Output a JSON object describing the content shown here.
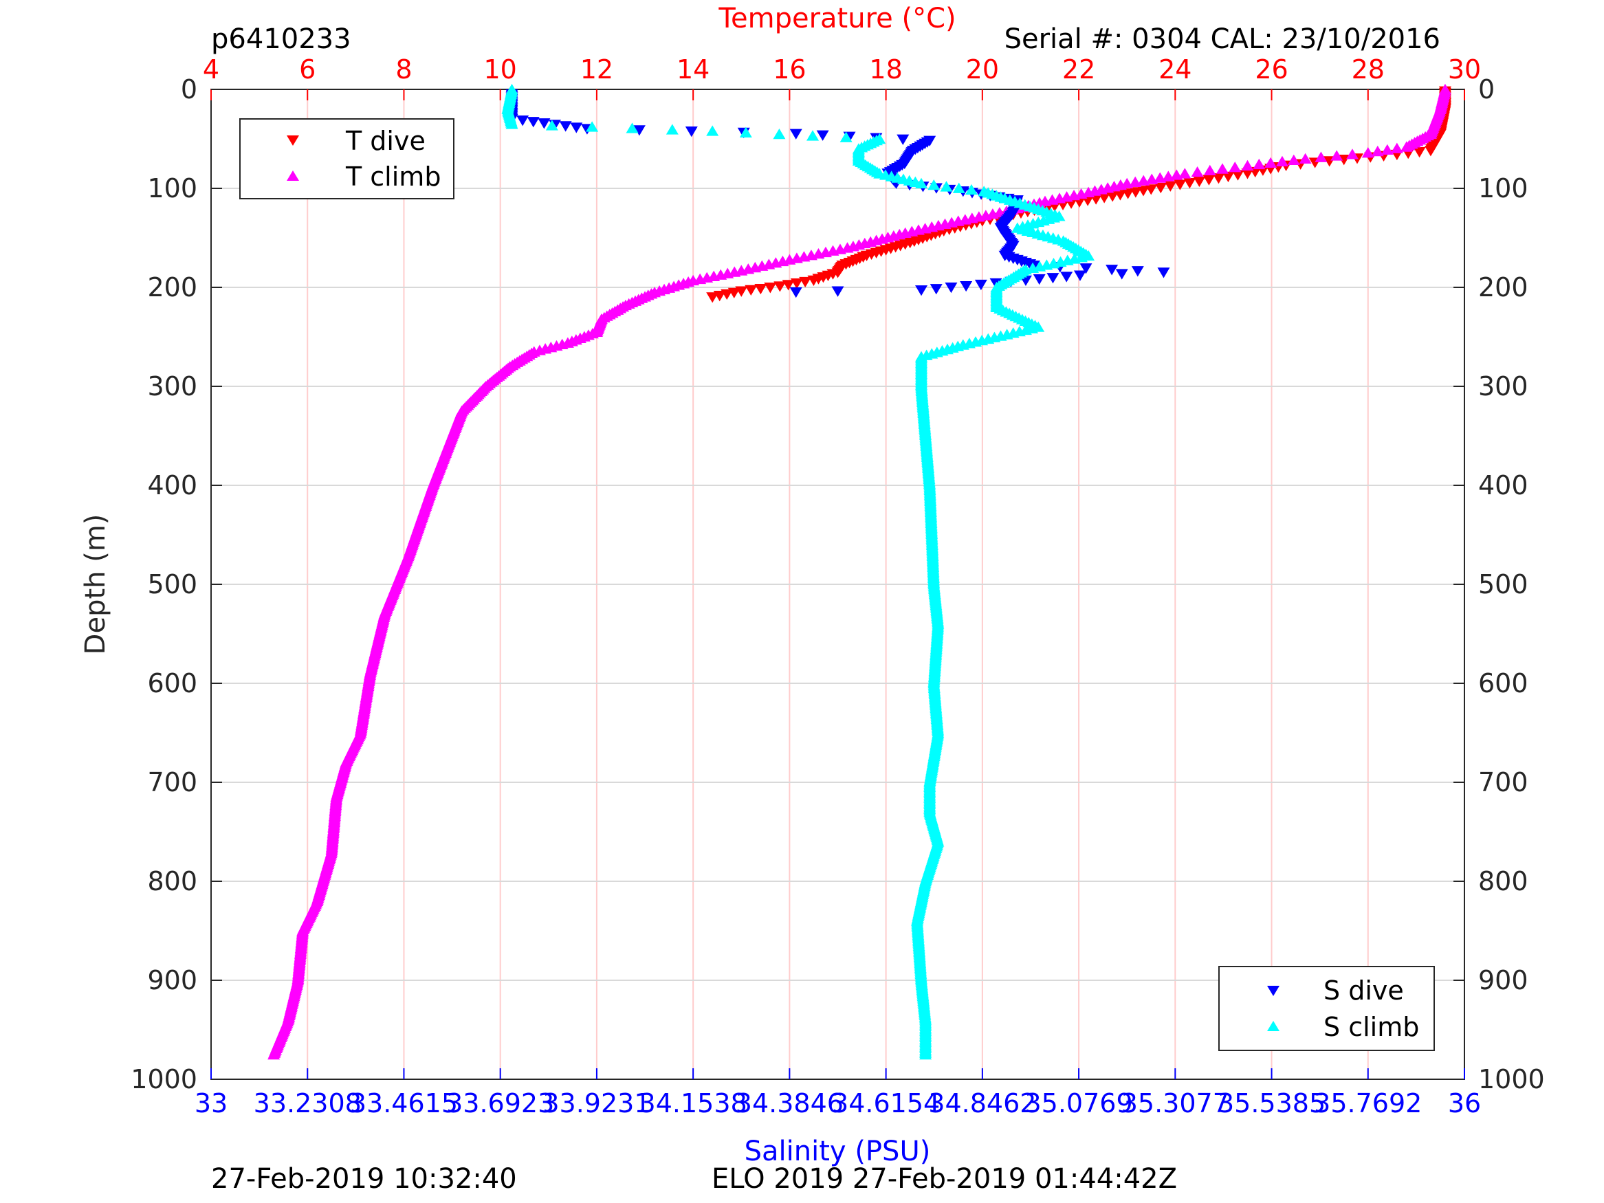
{
  "header": {
    "profile_id": "p6410233",
    "serial": "Serial #: 0304  CAL: 23/10/2016"
  },
  "footer": {
    "left_timestamp": "27-Feb-2019 10:32:40",
    "right_text": "ELO 2019 27-Feb-2019 01:44:42Z"
  },
  "chart_data": {
    "type": "scatter",
    "xlabel_top": "Temperature (°C)",
    "xlabel_bottom": "Salinity (PSU)",
    "ylabel": "Depth (m)",
    "xlim_top": [
      4,
      30
    ],
    "xlim_bottom": [
      33,
      36
    ],
    "ylim": [
      0,
      1000
    ],
    "y_reversed": true,
    "grid": true,
    "temp_ticks": [
      "4",
      "6",
      "8",
      "10",
      "12",
      "14",
      "16",
      "18",
      "20",
      "22",
      "24",
      "26",
      "28",
      "30"
    ],
    "sal_ticks": [
      "33",
      "33.2308",
      "33.4615",
      "33.6923",
      "33.9231",
      "34.1538",
      "34.3846",
      "34.6154",
      "34.8462",
      "35.0769",
      "35.3077",
      "35.5385",
      "35.7692",
      "36"
    ],
    "depth_ticks": [
      "0",
      "100",
      "200",
      "300",
      "400",
      "500",
      "600",
      "700",
      "800",
      "900",
      "1000"
    ],
    "legend_temperature": {
      "placement": "top-left",
      "entries": [
        "T dive",
        "T climb"
      ]
    },
    "legend_salinity": {
      "placement": "bottom-right",
      "entries": [
        "S dive",
        "S climb"
      ]
    },
    "colors": {
      "temp_axis": "#ff0000",
      "sal_axis": "#0000ff",
      "t_dive": "#ff0000",
      "t_climb": "#ff00ff",
      "s_dive": "#0000ff",
      "s_climb": "#00ffff",
      "temp_grid": "#ffcccc",
      "depth_grid": "#d9d9d9"
    },
    "series": [
      {
        "name": "T dive",
        "axis": "temperature",
        "marker": "triangle-down",
        "points": [
          [
            29.6,
            2
          ],
          [
            29.6,
            20
          ],
          [
            29.5,
            45
          ],
          [
            29.3,
            62
          ],
          [
            28.6,
            66
          ],
          [
            27.5,
            71
          ],
          [
            26.3,
            77
          ],
          [
            25.5,
            85
          ],
          [
            24.5,
            93
          ],
          [
            23.5,
            101
          ],
          [
            22.7,
            108
          ],
          [
            21.5,
            118
          ],
          [
            20.8,
            125
          ],
          [
            20,
            133
          ],
          [
            19.2,
            143
          ],
          [
            18.5,
            155
          ],
          [
            17.6,
            168
          ],
          [
            17.1,
            178
          ],
          [
            17,
            185
          ],
          [
            16.5,
            193
          ],
          [
            15.8,
            199
          ],
          [
            15,
            204
          ],
          [
            14.4,
            210
          ]
        ]
      },
      {
        "name": "T climb",
        "axis": "temperature",
        "marker": "triangle-up",
        "points": [
          [
            29.6,
            0
          ],
          [
            29.5,
            20
          ],
          [
            29.3,
            45
          ],
          [
            28.8,
            58
          ],
          [
            28,
            64
          ],
          [
            26.7,
            70
          ],
          [
            25.5,
            77
          ],
          [
            24.2,
            85
          ],
          [
            23,
            95
          ],
          [
            22.2,
            104
          ],
          [
            21.3,
            113
          ],
          [
            20.5,
            123
          ],
          [
            19.5,
            133
          ],
          [
            18.4,
            145
          ],
          [
            17.2,
            160
          ],
          [
            16,
            172
          ],
          [
            15,
            183
          ],
          [
            14,
            193
          ],
          [
            13.2,
            205
          ],
          [
            12.6,
            218
          ],
          [
            12.1,
            232
          ],
          [
            12,
            245
          ],
          [
            11.4,
            256
          ],
          [
            10.7,
            265
          ],
          [
            10.2,
            280
          ],
          [
            9.7,
            300
          ],
          [
            9.2,
            325
          ],
          [
            9,
            350
          ],
          [
            8.6,
            400
          ],
          [
            8.1,
            470
          ],
          [
            7.6,
            530
          ],
          [
            7.3,
            590
          ],
          [
            7.1,
            650
          ],
          [
            6.8,
            680
          ],
          [
            6.6,
            715
          ],
          [
            6.5,
            770
          ],
          [
            6.2,
            820
          ],
          [
            5.9,
            850
          ],
          [
            5.8,
            900
          ],
          [
            5.6,
            940
          ],
          [
            5.3,
            975
          ]
        ]
      },
      {
        "name": "S dive",
        "axis": "salinity",
        "marker": "triangle-down",
        "points": [
          [
            33.72,
            5
          ],
          [
            33.72,
            30
          ],
          [
            33.9,
            40
          ],
          [
            34.4,
            45
          ],
          [
            34.72,
            52
          ],
          [
            34.68,
            62
          ],
          [
            34.66,
            75
          ],
          [
            34.62,
            85
          ],
          [
            34.64,
            95
          ],
          [
            34.8,
            103
          ],
          [
            34.93,
            112
          ],
          [
            34.92,
            125
          ],
          [
            34.89,
            140
          ],
          [
            34.92,
            158
          ],
          [
            34.9,
            168
          ],
          [
            34.97,
            178
          ],
          [
            35.28,
            185
          ],
          [
            35.08,
            188
          ],
          [
            34.95,
            193
          ],
          [
            34.7,
            203
          ],
          [
            34.5,
            204
          ],
          [
            34.4,
            205
          ]
        ]
      },
      {
        "name": "S climb",
        "axis": "salinity",
        "marker": "triangle-up",
        "points": [
          [
            33.72,
            0
          ],
          [
            33.71,
            20
          ],
          [
            33.72,
            35
          ],
          [
            34.2,
            42
          ],
          [
            34.6,
            50
          ],
          [
            34.55,
            60
          ],
          [
            34.55,
            72
          ],
          [
            34.6,
            85
          ],
          [
            34.7,
            95
          ],
          [
            34.85,
            103
          ],
          [
            34.9,
            110
          ],
          [
            34.96,
            118
          ],
          [
            35.03,
            128
          ],
          [
            34.93,
            140
          ],
          [
            35.04,
            153
          ],
          [
            35.1,
            168
          ],
          [
            34.95,
            182
          ],
          [
            34.88,
            200
          ],
          [
            34.88,
            220
          ],
          [
            34.98,
            240
          ],
          [
            34.8,
            258
          ],
          [
            34.7,
            270
          ],
          [
            34.7,
            300
          ],
          [
            34.72,
            400
          ],
          [
            34.73,
            500
          ],
          [
            34.74,
            540
          ],
          [
            34.73,
            600
          ],
          [
            34.74,
            650
          ],
          [
            34.72,
            700
          ],
          [
            34.72,
            730
          ],
          [
            34.74,
            760
          ],
          [
            34.71,
            800
          ],
          [
            34.69,
            840
          ],
          [
            34.7,
            900
          ],
          [
            34.71,
            940
          ],
          [
            34.71,
            975
          ]
        ]
      }
    ]
  }
}
